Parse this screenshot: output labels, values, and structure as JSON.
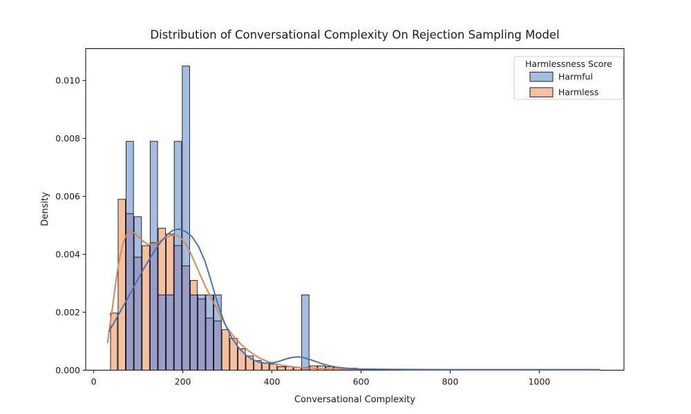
{
  "figure": {
    "title": "Distribution of Conversational Complexity On Rejection Sampling Model",
    "background": "#ffffff"
  },
  "axes": {
    "xlabel": "Conversational Complexity",
    "ylabel": "Density",
    "xtick_labels": [
      "0",
      "200",
      "400",
      "600",
      "800",
      "1000"
    ],
    "xtick_values": [
      0,
      200,
      400,
      600,
      800,
      1000
    ],
    "ytick_labels": [
      "0.000",
      "0.002",
      "0.004",
      "0.006",
      "0.008",
      "0.010"
    ],
    "ytick_values": [
      0,
      0.002,
      0.004,
      0.006,
      0.008,
      0.01
    ],
    "xlim": [
      -18,
      1190
    ],
    "ylim": [
      0,
      0.0111
    ],
    "grid": false,
    "spine_color": "#000000"
  },
  "legend": {
    "title": "Harmlessness Score",
    "position": "upper right",
    "entries": [
      {
        "label": "Harmful",
        "swatch_color": "#a6bde2"
      },
      {
        "label": "Harmless",
        "swatch_color": "#f5c0a0"
      }
    ]
  },
  "colors": {
    "harmful_fill": "#a6bde2",
    "harmless_fill": "#f5c0a0",
    "overlap_fill": "#9a9dc7",
    "harmful_line": "#4c72b0",
    "harmless_line": "#dd8452",
    "bar_edge": "#111111",
    "legend_border": "#cccccc"
  },
  "chart_data": {
    "type": "histogram+kde",
    "title": "Distribution of Conversational Complexity On Rejection Sampling Model",
    "xlabel": "Conversational Complexity",
    "ylabel": "Density",
    "xlim": [
      -18,
      1190
    ],
    "ylim": [
      0,
      0.0111
    ],
    "legend_title": "Harmlessness Score",
    "legend_position": "upper right",
    "bin_edges": [
      37,
      54,
      72,
      90,
      108,
      126,
      144,
      162,
      180,
      198,
      216,
      233,
      251,
      269,
      287,
      305,
      323,
      341,
      359,
      377,
      394,
      412,
      430,
      448,
      466,
      484,
      502,
      520,
      538,
      556,
      573,
      591
    ],
    "series": [
      {
        "name": "Harmful",
        "densities": [
          0,
          0,
          0.0079,
          0.0053,
          0,
          0.0079,
          0.0026,
          0.0026,
          0.0079,
          0.0105,
          0.0026,
          0.0026,
          0.0026,
          0.0026,
          0,
          0,
          0,
          0,
          0,
          0,
          0,
          0,
          0,
          0,
          0.0026,
          0,
          0,
          0,
          0,
          0,
          0
        ],
        "kde_x": [
          35,
          55,
          75,
          95,
          115,
          135,
          150,
          165,
          178,
          190,
          205,
          220,
          235,
          250,
          262,
          272,
          282,
          295,
          310,
          325,
          340,
          355,
          370,
          385,
          400,
          415,
          430,
          445,
          458,
          470,
          485,
          500,
          515,
          530,
          550,
          575,
          600,
          650,
          700,
          800,
          900,
          1000,
          1100,
          1135
        ],
        "kde_y": [
          0.00135,
          0.0019,
          0.00245,
          0.00302,
          0.00358,
          0.00408,
          0.00442,
          0.00468,
          0.00483,
          0.00487,
          0.0048,
          0.00462,
          0.00428,
          0.00375,
          0.00315,
          0.00262,
          0.00212,
          0.00158,
          0.00112,
          0.00078,
          0.00054,
          0.00038,
          0.00028,
          0.00024,
          0.00025,
          0.0003,
          0.00038,
          0.00044,
          0.00046,
          0.00044,
          0.00037,
          0.00029,
          0.00021,
          0.00015,
          9e-05,
          6e-05,
          4e-05,
          3e-05,
          2e-05,
          2e-05,
          2e-05,
          2e-05,
          2e-05,
          2e-05
        ]
      },
      {
        "name": "Harmless",
        "densities": [
          0.00197,
          0.0059,
          0.0054,
          0.0039,
          0.0043,
          0.0044,
          0.0049,
          0.0047,
          0.0043,
          0.0036,
          0.0031,
          0.00246,
          0.0018,
          0.0017,
          0.0014,
          0.0011,
          0.00074,
          0.00049,
          0.00033,
          0.00025,
          0.00021,
          0.00012,
          0.00012,
          0.0001,
          0.0001,
          0.00015,
          0.00015,
          0.00012,
          0.0001,
          7e-05,
          7e-05
        ],
        "kde_x": [
          31,
          36,
          42,
          48,
          54,
          60,
          68,
          76,
          84,
          92,
          102,
          112,
          122,
          132,
          142,
          152,
          160,
          168,
          176,
          185,
          195,
          205,
          215,
          228,
          240,
          252,
          262,
          275,
          285,
          300,
          315,
          330,
          345,
          360,
          375,
          390,
          405,
          425,
          450,
          475,
          500,
          550,
          600,
          700,
          800,
          900,
          1000,
          1100,
          1135
        ],
        "kde_y": [
          0.00095,
          0.0015,
          0.00215,
          0.00285,
          0.0035,
          0.004,
          0.00448,
          0.00475,
          0.0048,
          0.00472,
          0.00458,
          0.00444,
          0.00434,
          0.00432,
          0.00438,
          0.00448,
          0.00456,
          0.00462,
          0.00466,
          0.00467,
          0.00458,
          0.00438,
          0.00412,
          0.00368,
          0.00325,
          0.00285,
          0.00255,
          0.00215,
          0.00185,
          0.00145,
          0.00115,
          0.0009,
          0.0007,
          0.00053,
          0.0004,
          0.0003,
          0.00023,
          0.00016,
          0.00011,
          8e-05,
          6e-05,
          4e-05,
          3e-05,
          3e-05,
          2e-05,
          2e-05,
          2e-05,
          2e-05,
          2e-05
        ]
      }
    ]
  }
}
